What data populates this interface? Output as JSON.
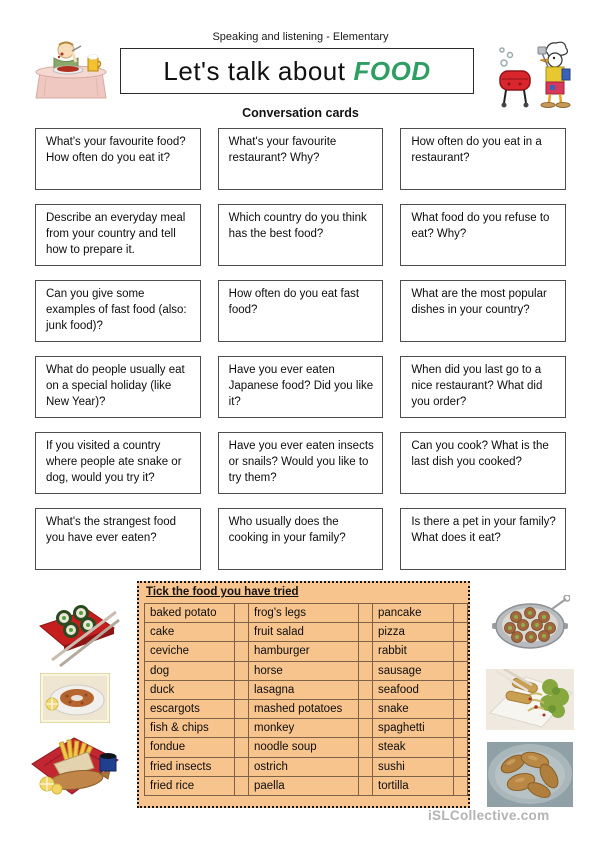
{
  "page": {
    "subtitle": "Speaking and listening - Elementary",
    "title_prefix": "Let's talk about",
    "title_highlight": "FOOD",
    "title_highlight_color": "#2f9e63",
    "section_heading": "Conversation cards",
    "watermark": "iSLCollective.com"
  },
  "cards": {
    "items": [
      "What's your favourite food? How often do you eat it?",
      "What's your favourite restaurant? Why?",
      "How often do you eat in a restaurant?",
      "Describe an everyday meal from your country and tell how to prepare it.",
      "Which country do you think has the best food?",
      "What food do you refuse to eat? Why?",
      "Can you give some examples of fast food (also: junk food)?",
      "How often do you eat fast food?",
      "What are the most popular dishes in your country?",
      "What do people usually eat on a special holiday (like New Year)?",
      "Have you ever eaten Japanese food? Did you like it?",
      "When did you last go to a nice restaurant? What did you order?",
      "If you visited a country where people ate snake or dog, would you try it?",
      "Have you ever eaten insects or snails? Would you like to try them?",
      "Can you cook? What is the last dish you cooked?",
      "What's the strangest food you have ever eaten?",
      "Who usually does the cooking in your family?",
      "Is there a pet in your family? What does it eat?"
    ]
  },
  "food_table": {
    "heading": "Tick the food you have tried",
    "background": "#f8c48e",
    "border_color": "#7d6248",
    "rows": [
      [
        "baked potato",
        "frog's legs",
        "pancake"
      ],
      [
        "cake",
        "fruit salad",
        "pizza"
      ],
      [
        "ceviche",
        "hamburger",
        "rabbit"
      ],
      [
        "dog",
        "horse",
        "sausage"
      ],
      [
        "duck",
        "lasagna",
        "seafood"
      ],
      [
        "escargots",
        "mashed potatoes",
        "snake"
      ],
      [
        "fish & chips",
        "monkey",
        "spaghetti"
      ],
      [
        "fondue",
        "noodle soup",
        "steak"
      ],
      [
        "fried insects",
        "ostrich",
        "sushi"
      ],
      [
        "fried rice",
        "paella",
        "tortilla"
      ]
    ]
  },
  "images": {
    "header_left": "man-eating-dinner-clipart",
    "header_right": "duck-chef-barbecue-clipart",
    "left_column": [
      "sushi-tray-with-chopsticks-image",
      "ceviche-plate-image",
      "fish-and-chips-clipart"
    ],
    "right_column": [
      "escargots-pan-image",
      "spring-rolls-plate-image",
      "fried-frog-legs-plate-image"
    ]
  }
}
